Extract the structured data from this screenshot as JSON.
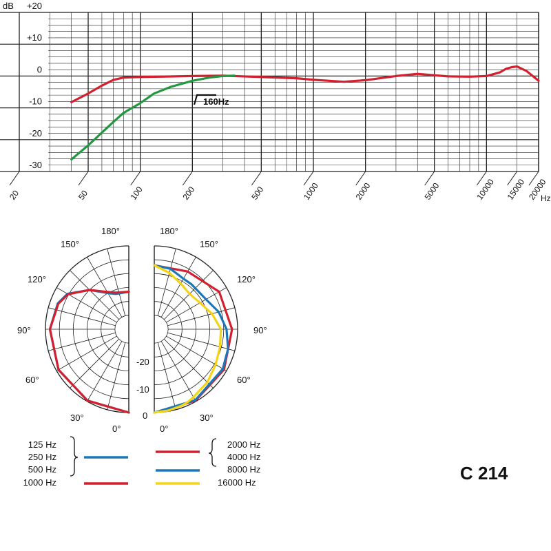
{
  "model": "C 214",
  "colors": {
    "red": "#d3202e",
    "green": "#23973f",
    "blue": "#1b78b8",
    "yellow": "#f5d417",
    "grid": "#222222"
  },
  "chart_data": [
    {
      "type": "line",
      "xscale": "log",
      "xlim": [
        20,
        20000
      ],
      "ylim": [
        -30,
        20
      ],
      "ylabel": "dB",
      "xlabel": "Hz",
      "y_ticks": [
        {
          "value": 20,
          "label": "+20"
        },
        {
          "value": 10,
          "label": "+10"
        },
        {
          "value": 0,
          "label": "0"
        },
        {
          "value": -10,
          "label": "-10"
        },
        {
          "value": -20,
          "label": "-20"
        },
        {
          "value": -30,
          "label": "-30"
        }
      ],
      "x_ticks": [
        20,
        50,
        100,
        200,
        500,
        1000,
        2000,
        5000,
        10000,
        15000,
        20000
      ],
      "annotation": "160Hz",
      "series": [
        {
          "color_key": "red",
          "x": [
            40,
            50,
            60,
            70,
            80,
            100,
            200,
            300,
            500,
            800,
            1000,
            1500,
            2000,
            3000,
            4000,
            6000,
            8000,
            10000,
            12000,
            13000,
            14000,
            15000,
            17000,
            20000
          ],
          "y": [
            -8.2,
            -5.5,
            -3,
            -1.2,
            -0.5,
            -0.3,
            0,
            0.1,
            -0.3,
            -0.7,
            -1.2,
            -1.8,
            -1.3,
            0,
            0.7,
            -0.1,
            -0.2,
            0,
            1.2,
            2.3,
            2.8,
            3.0,
            1.6,
            -1.5
          ]
        },
        {
          "color_key": "green",
          "x": [
            40,
            50,
            60,
            70,
            80,
            100,
            120,
            150,
            200,
            250,
            300,
            350
          ],
          "y": [
            -26.2,
            -21.8,
            -17.8,
            -14.4,
            -11.6,
            -8.5,
            -5.5,
            -3.4,
            -1.5,
            -0.5,
            0,
            0.1
          ]
        }
      ]
    },
    {
      "type": "polar",
      "rings_db": [
        0,
        -10,
        -20
      ],
      "ring_labels": [
        "0",
        "-10",
        "-20"
      ],
      "angle_labels": [
        "180°",
        "150°",
        "120°",
        "90°",
        "60°",
        "30°",
        "0°"
      ],
      "left": {
        "legend_bracket": [
          "125 Hz",
          "250 Hz",
          "500 Hz"
        ],
        "legend_single": "1000 Hz",
        "series": [
          {
            "name": "125 Hz / 250 Hz / 500 Hz",
            "color_key": "blue",
            "angle": [
              0,
              30,
              60,
              90,
              110,
              120,
              135,
              150,
              160,
              180
            ],
            "db": [
              0,
              -0.3,
              -0.8,
              -1.6,
              -2.8,
              -4.5,
              -10,
              -15,
              -16.5,
              -16.5
            ]
          },
          {
            "name": "1000 Hz",
            "color_key": "red",
            "angle": [
              0,
              30,
              60,
              90,
              110,
              120,
              135,
              150,
              160,
              180
            ],
            "db": [
              0,
              -0.3,
              -0.8,
              -1.6,
              -3,
              -4.8,
              -10,
              -14.5,
              -16,
              -16.5
            ]
          }
        ]
      },
      "right": {
        "legend_bracket": [
          "2000 Hz",
          "4000 Hz"
        ],
        "legend_items": [
          "8000 Hz",
          "16000 Hz"
        ],
        "series": [
          {
            "name": "2000 Hz / 4000 Hz",
            "color_key": "red",
            "angle": [
              0,
              30,
              60,
              90,
              120,
              150,
              180
            ],
            "db": [
              0,
              -0.3,
              -1,
              -2,
              -3,
              -6,
              -7
            ]
          },
          {
            "name": "8000 Hz",
            "color_key": "blue",
            "angle": [
              0,
              30,
              60,
              75,
              90,
              105,
              120,
              140,
              150,
              165,
              180
            ],
            "db": [
              0,
              -0.5,
              -1.5,
              -2.5,
              -4,
              -6,
              -8.5,
              -9,
              -9,
              -7.5,
              -7
            ]
          },
          {
            "name": "16000 Hz",
            "color_key": "yellow",
            "angle": [
              0,
              10,
              20,
              25,
              30,
              45,
              60,
              75,
              90,
              105,
              120,
              135,
              150,
              165,
              180
            ],
            "db": [
              0,
              -0.3,
              -0.8,
              -1.2,
              -1.8,
              -3,
              -4.5,
              -5.5,
              -6,
              -8.5,
              -11,
              -12,
              -11,
              -9,
              -7
            ]
          }
        ]
      }
    }
  ]
}
